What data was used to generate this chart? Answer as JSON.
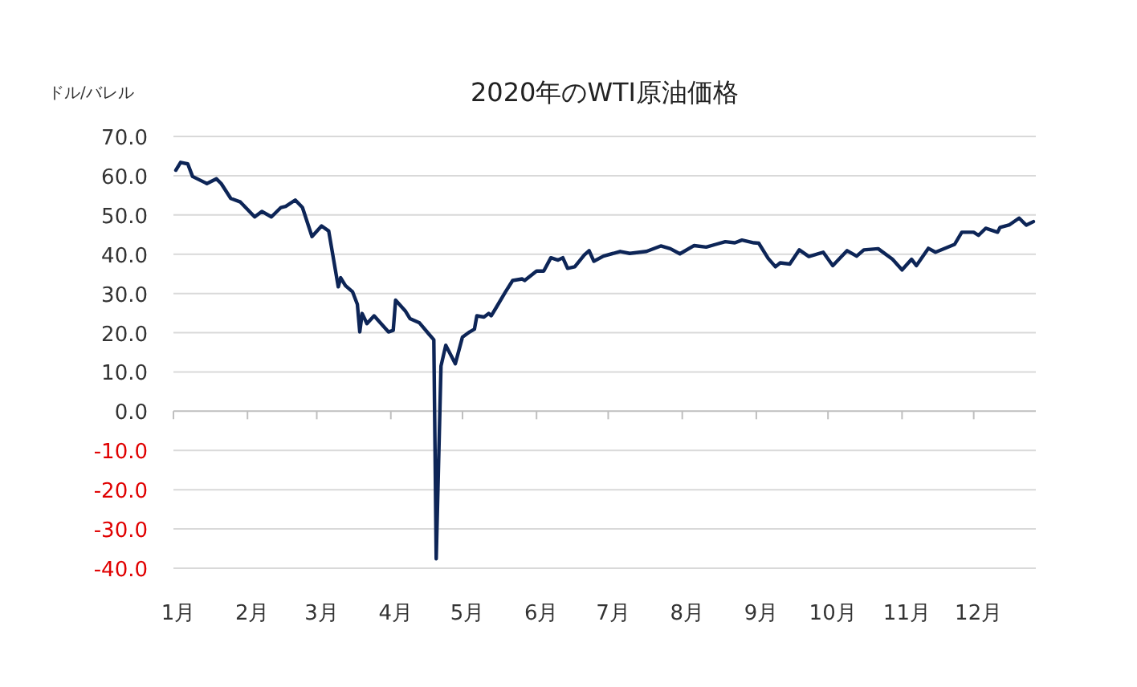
{
  "chart_data": {
    "type": "line",
    "title": "2020年のWTI原油価格",
    "ylabel": "ドル/バレル",
    "xlim": [
      "2020-01-01",
      "2020-12-27"
    ],
    "xticks": [
      {
        "value": "2020-01-01",
        "label": "1月"
      },
      {
        "value": "2020-02-01",
        "label": "2月"
      },
      {
        "value": "2020-03-01",
        "label": "3月"
      },
      {
        "value": "2020-04-01",
        "label": "4月"
      },
      {
        "value": "2020-05-01",
        "label": "5月"
      },
      {
        "value": "2020-06-01",
        "label": "6月"
      },
      {
        "value": "2020-07-01",
        "label": "7月"
      },
      {
        "value": "2020-08-01",
        "label": "8月"
      },
      {
        "value": "2020-09-01",
        "label": "9月"
      },
      {
        "value": "2020-10-01",
        "label": "10月"
      },
      {
        "value": "2020-11-01",
        "label": "11月"
      },
      {
        "value": "2020-12-01",
        "label": "12月"
      }
    ],
    "ylim": [
      -40,
      70
    ],
    "yticks": [
      {
        "value": 70,
        "label": "70.0"
      },
      {
        "value": 60,
        "label": "60.0"
      },
      {
        "value": 50,
        "label": "50.0"
      },
      {
        "value": 40,
        "label": "40.0"
      },
      {
        "value": 30,
        "label": "30.0"
      },
      {
        "value": 20,
        "label": "20.0"
      },
      {
        "value": 10,
        "label": "10.0"
      },
      {
        "value": 0,
        "label": "0.0"
      },
      {
        "value": -10,
        "label": "-10.0"
      },
      {
        "value": -20,
        "label": "-20.0"
      },
      {
        "value": -30,
        "label": "-30.0"
      },
      {
        "value": -40,
        "label": "-40.0"
      }
    ],
    "grid": "y",
    "marker": "none",
    "line_style": "solid",
    "x": [
      "2020-01-02",
      "2020-01-04",
      "2020-01-07",
      "2020-01-09",
      "2020-01-15",
      "2020-01-19",
      "2020-01-21",
      "2020-01-25",
      "2020-01-29",
      "2020-02-04",
      "2020-02-07",
      "2020-02-11",
      "2020-02-15",
      "2020-02-17",
      "2020-02-21",
      "2020-02-24",
      "2020-02-28",
      "2020-03-03",
      "2020-03-06",
      "2020-03-10",
      "2020-03-11",
      "2020-03-13",
      "2020-03-16",
      "2020-03-18",
      "2020-03-19",
      "2020-03-20",
      "2020-03-22",
      "2020-03-25",
      "2020-03-31",
      "2020-04-02",
      "2020-04-03",
      "2020-04-07",
      "2020-04-09",
      "2020-04-13",
      "2020-04-17",
      "2020-04-19",
      "2020-04-20",
      "2020-04-22",
      "2020-04-24",
      "2020-04-28",
      "2020-05-01",
      "2020-05-04",
      "2020-05-06",
      "2020-05-07",
      "2020-05-10",
      "2020-05-12",
      "2020-05-13",
      "2020-05-15",
      "2020-05-19",
      "2020-05-22",
      "2020-05-26",
      "2020-05-27",
      "2020-06-01",
      "2020-06-04",
      "2020-06-07",
      "2020-06-10",
      "2020-06-12",
      "2020-06-14",
      "2020-06-17",
      "2020-06-21",
      "2020-06-23",
      "2020-06-25",
      "2020-06-29",
      "2020-07-06",
      "2020-07-10",
      "2020-07-17",
      "2020-07-23",
      "2020-07-27",
      "2020-07-31",
      "2020-08-06",
      "2020-08-11",
      "2020-08-15",
      "2020-08-19",
      "2020-08-23",
      "2020-08-26",
      "2020-08-31",
      "2020-09-02",
      "2020-09-06",
      "2020-09-09",
      "2020-09-11",
      "2020-09-15",
      "2020-09-19",
      "2020-09-23",
      "2020-09-29",
      "2020-10-03",
      "2020-10-09",
      "2020-10-13",
      "2020-10-16",
      "2020-10-22",
      "2020-10-28",
      "2020-11-01",
      "2020-11-05",
      "2020-11-07",
      "2020-11-12",
      "2020-11-15",
      "2020-11-23",
      "2020-11-26",
      "2020-12-01",
      "2020-12-03",
      "2020-12-06",
      "2020-12-11",
      "2020-12-12",
      "2020-12-16",
      "2020-12-20",
      "2020-12-23",
      "2020-12-26"
    ],
    "series": [
      {
        "color": "#0d2557",
        "values": [
          61.4,
          63.4,
          63.0,
          59.8,
          58.0,
          59.2,
          58.0,
          54.2,
          53.3,
          49.5,
          50.9,
          49.5,
          51.9,
          52.2,
          53.8,
          51.9,
          44.5,
          47.2,
          45.9,
          31.7,
          34.0,
          32.0,
          30.4,
          27.2,
          20.2,
          24.9,
          22.3,
          24.3,
          20.2,
          20.6,
          28.3,
          25.6,
          23.6,
          22.5,
          19.6,
          18.2,
          -37.6,
          11.5,
          16.8,
          12.1,
          18.9,
          20.2,
          20.9,
          24.3,
          24.0,
          24.9,
          24.3,
          26.3,
          30.4,
          33.3,
          33.7,
          33.3,
          35.7,
          35.7,
          39.1,
          38.5,
          39.1,
          36.4,
          36.8,
          39.8,
          40.9,
          38.2,
          39.5,
          40.7,
          40.2,
          40.7,
          42.1,
          41.4,
          40.1,
          42.2,
          41.8,
          42.5,
          43.2,
          42.9,
          43.6,
          42.9,
          42.8,
          38.9,
          36.8,
          37.8,
          37.5,
          41.1,
          39.4,
          40.5,
          37.1,
          40.9,
          39.5,
          41.1,
          41.4,
          38.7,
          36.0,
          38.7,
          37.1,
          41.5,
          40.5,
          42.5,
          45.6,
          45.6,
          44.8,
          46.6,
          45.6,
          46.8,
          47.5,
          49.2,
          47.4,
          48.3
        ]
      }
    ]
  }
}
